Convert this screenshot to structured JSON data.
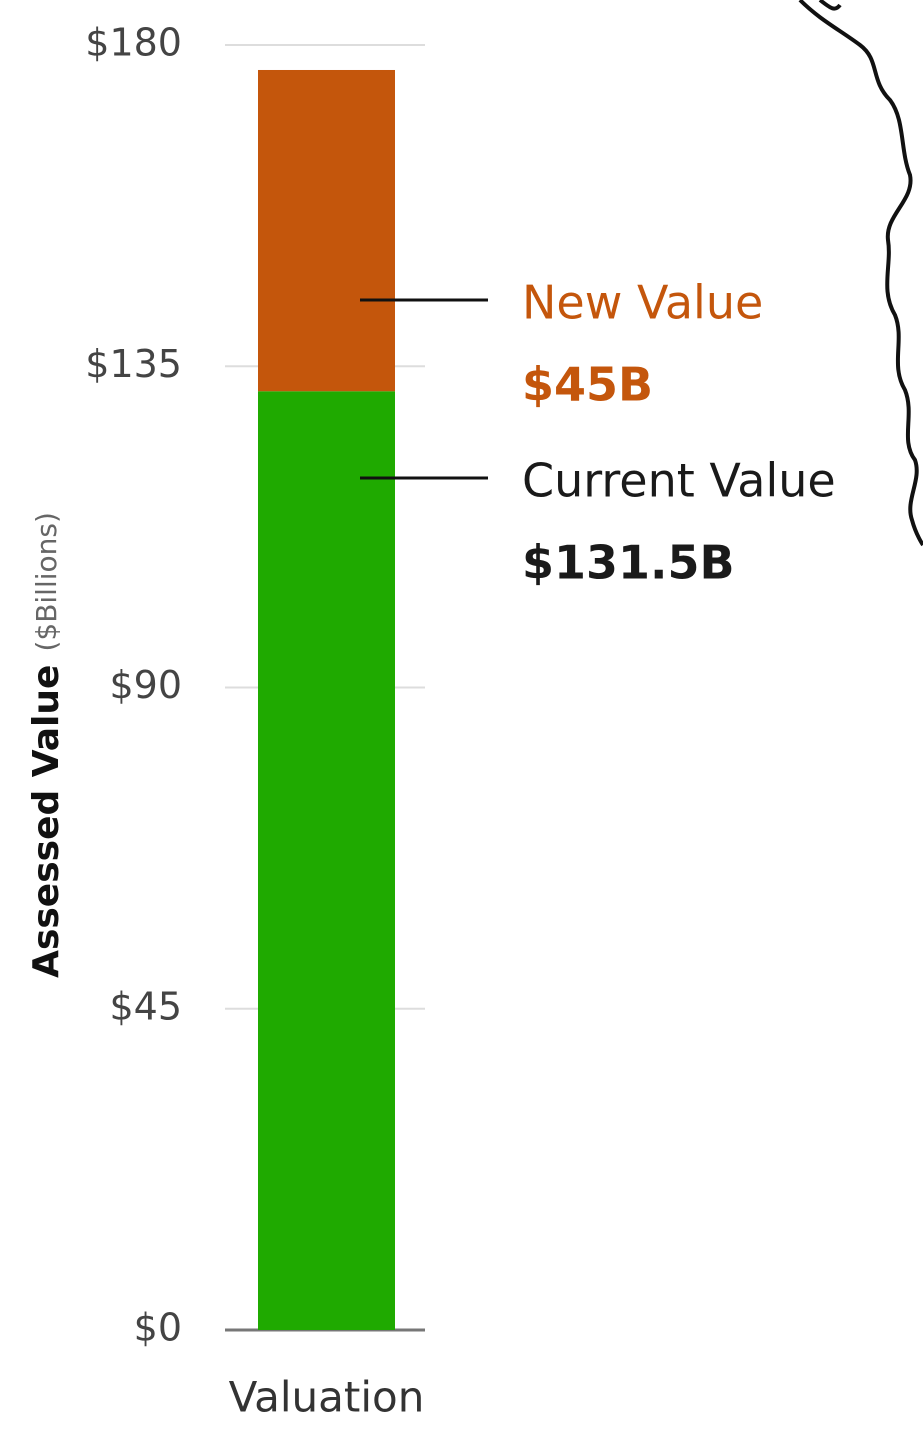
{
  "chart_data": {
    "type": "stacked_bar",
    "ylabel": "Assessed Value",
    "ylabel_unit": "($Billions)",
    "categories": [
      "Valuation"
    ],
    "series": [
      {
        "name": "Current Value",
        "color": "#1faa00",
        "values": [
          131.5
        ],
        "value_labels": [
          "$131.5B"
        ]
      },
      {
        "name": "New Value",
        "color": "#c4560c",
        "values": [
          45
        ],
        "value_labels": [
          "$45B"
        ]
      }
    ],
    "ylim": [
      0,
      180
    ],
    "yticks": [
      {
        "value": 0,
        "label": "$0"
      },
      {
        "value": 45,
        "label": "$45"
      },
      {
        "value": 90,
        "label": "$90"
      },
      {
        "value": 135,
        "label": "$135"
      },
      {
        "value": 180,
        "label": "$180"
      }
    ],
    "grid": true
  }
}
